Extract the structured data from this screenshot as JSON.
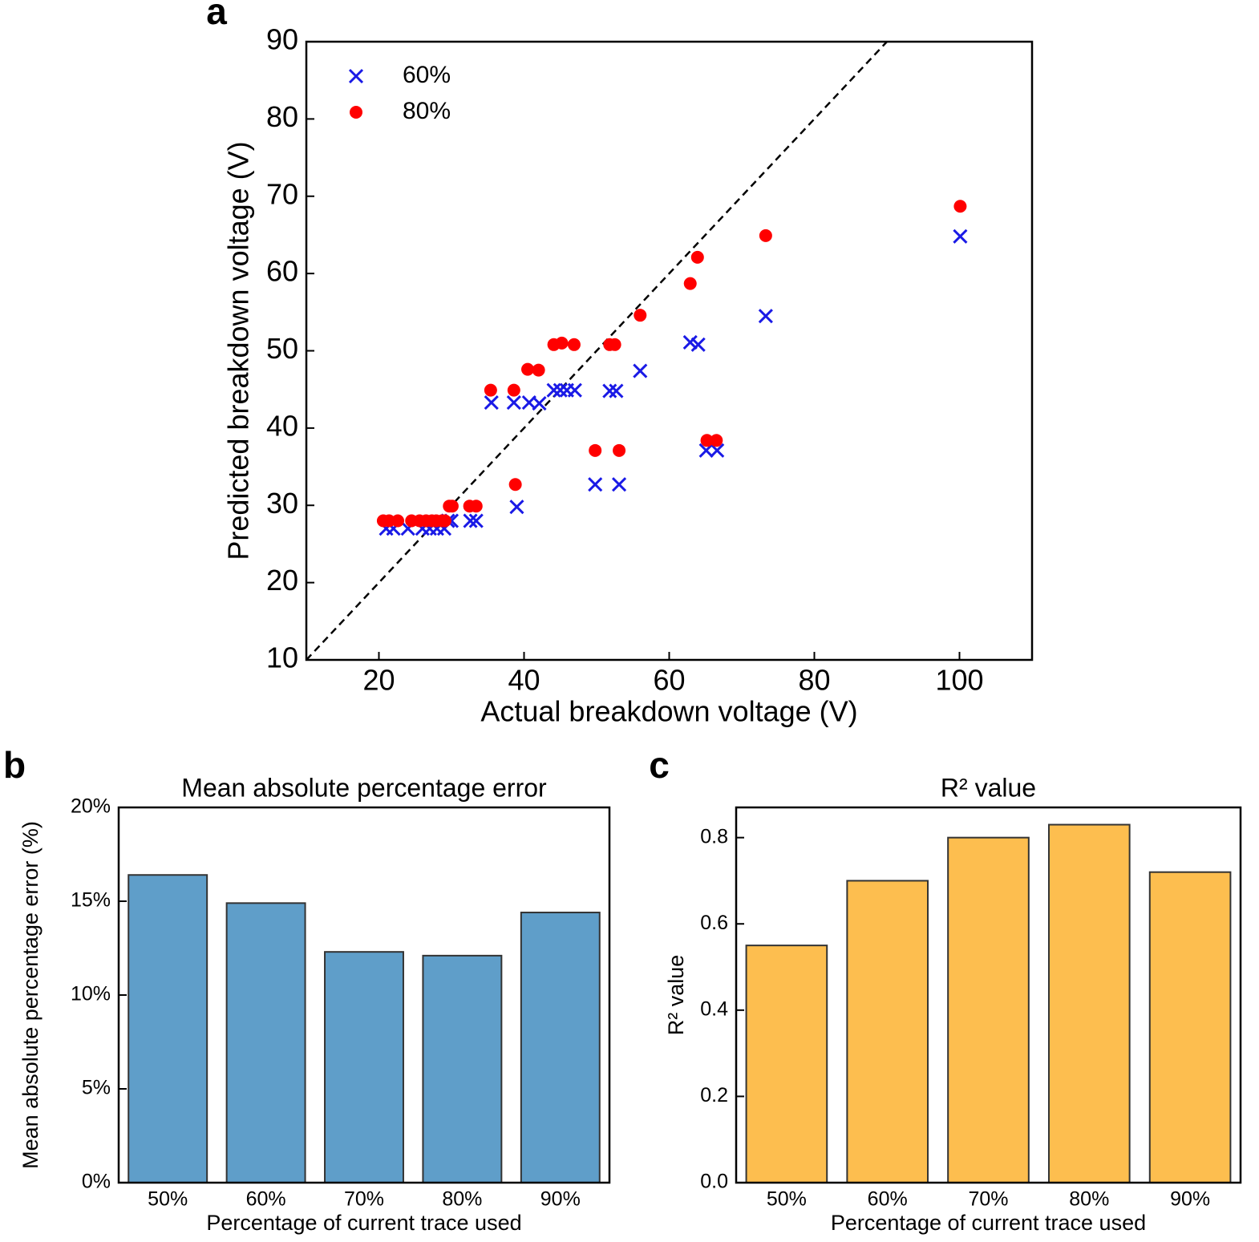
{
  "chart_data": [
    {
      "type": "scatter",
      "panel_label": "a",
      "xlabel": "Actual breakdown voltage (V)",
      "ylabel": "Predicted breakdown voltage (V)",
      "xlim": [
        10,
        110
      ],
      "ylim": [
        10,
        90
      ],
      "xticks": [
        20,
        40,
        60,
        80,
        100
      ],
      "yticks": [
        10,
        20,
        30,
        40,
        50,
        60,
        70,
        80,
        90
      ],
      "identity_line": true,
      "legend": "upper left",
      "series": [
        {
          "name": "60%",
          "color": "#1a1ae6",
          "marker": "x",
          "x": [
            21,
            22,
            24,
            26,
            27,
            28,
            29,
            29.5,
            30,
            32.6,
            33.4,
            35.5,
            38.6,
            39,
            40.7,
            42.1,
            44.1,
            45,
            45.9,
            47,
            49.8,
            51.8,
            52.7,
            53.1,
            56,
            62.9,
            64,
            65.1,
            66.6,
            73.3,
            100.1
          ],
          "values": [
            27,
            27,
            27,
            27,
            27,
            27,
            27,
            28,
            28,
            28,
            28,
            43.3,
            43.3,
            29.8,
            43.3,
            43.2,
            44.9,
            44.9,
            44.9,
            44.9,
            32.7,
            44.8,
            44.8,
            32.7,
            47.4,
            51.1,
            50.8,
            37.1,
            37.1,
            54.5,
            64.8
          ]
        },
        {
          "name": "80%",
          "color": "#ff0000",
          "marker": "o",
          "x": [
            20.6,
            21.4,
            22.6,
            24.5,
            25.6,
            26.5,
            27.3,
            27.9,
            28.7,
            29.1,
            29.7,
            30.1,
            32.5,
            33.4,
            35.4,
            38.6,
            38.8,
            40.5,
            42,
            44.1,
            45.2,
            46.9,
            49.8,
            51.8,
            52.5,
            53.1,
            56,
            62.9,
            63.9,
            65.2,
            66.5,
            73.3,
            100.1
          ],
          "values": [
            28,
            28,
            28,
            28,
            28,
            28,
            28,
            28,
            28,
            28,
            29.9,
            29.9,
            29.9,
            29.9,
            44.9,
            44.9,
            32.7,
            47.6,
            47.5,
            50.8,
            51,
            50.8,
            37.1,
            50.8,
            50.8,
            37.1,
            54.6,
            58.7,
            62.1,
            38.4,
            38.4,
            64.9,
            68.7
          ]
        }
      ]
    },
    {
      "type": "bar",
      "panel_label": "b",
      "title": "Mean absolute percentage error",
      "xlabel": "Percentage of current trace used",
      "ylabel": "Mean absolute percentage error (%)",
      "categories": [
        "50%",
        "60%",
        "70%",
        "80%",
        "90%"
      ],
      "values": [
        16.4,
        14.9,
        12.3,
        12.1,
        14.4
      ],
      "color": "#5f9ec9",
      "ylim": [
        0,
        20
      ],
      "yticks": [
        {
          "value": 0,
          "label": "0%"
        },
        {
          "value": 5,
          "label": "5%"
        },
        {
          "value": 10,
          "label": "10%"
        },
        {
          "value": 15,
          "label": "15%"
        },
        {
          "value": 20,
          "label": "20%"
        }
      ]
    },
    {
      "type": "bar",
      "panel_label": "c",
      "title": "R² value",
      "xlabel": "Percentage of current trace used",
      "ylabel": "R² value",
      "categories": [
        "50%",
        "60%",
        "70%",
        "80%",
        "90%"
      ],
      "values": [
        0.55,
        0.7,
        0.8,
        0.83,
        0.72
      ],
      "color": "#fdbe4f",
      "ylim": [
        0,
        0.87
      ],
      "yticks": [
        {
          "value": 0,
          "label": "0.0"
        },
        0.2,
        0.4,
        0.6,
        0.8
      ]
    }
  ]
}
